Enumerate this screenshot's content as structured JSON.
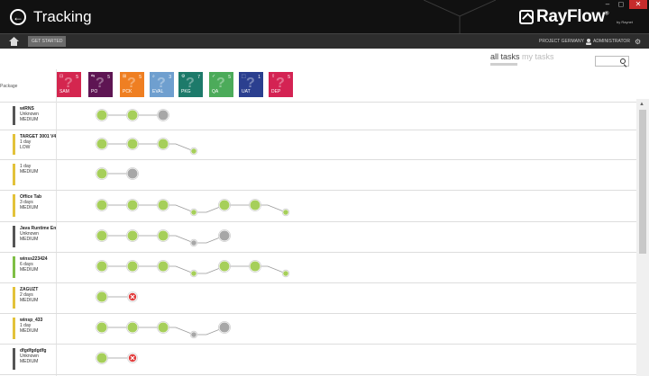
{
  "window": {
    "title": "Tracking",
    "brand": "RayFlow",
    "brand_mark": "®",
    "brand_sub": "by Raynet",
    "minimize": "–",
    "maximize": "◻",
    "close": "✕"
  },
  "nav": {
    "get_started": "GET STARTED",
    "project": "PROJECT GERMANY",
    "user": "ADMINISTRATOR"
  },
  "filter": {
    "all_tasks": "all tasks",
    "my_tasks": "my tasks"
  },
  "header": {
    "package_label": "Package"
  },
  "phases": [
    {
      "label": "SAM",
      "num": "5",
      "color": "#d4264f"
    },
    {
      "label": "PO",
      "num": "5",
      "color": "#5e1553"
    },
    {
      "label": "PCK",
      "num": "5",
      "color": "#ef7f22"
    },
    {
      "label": "EVAL",
      "num": "3",
      "color": "#6f9fcf"
    },
    {
      "label": "PKG",
      "num": "7",
      "color": "#1d7a6a"
    },
    {
      "label": "QA",
      "num": "5",
      "color": "#4cab5a"
    },
    {
      "label": "UAT",
      "num": "1",
      "color": "#2b3f8f"
    },
    {
      "label": "DEP",
      "num": "5",
      "color": "#d42353"
    }
  ],
  "packages": [
    {
      "name": "wiRNS",
      "duration": "Unknown",
      "priority": "MEDIUM",
      "color": "#555555"
    },
    {
      "name": "TARGET 3001 V4",
      "duration": "1 day",
      "priority": "LOW",
      "color": "#e3c23a"
    },
    {
      "name": "",
      "duration": "1 day",
      "priority": "MEDIUM",
      "color": "#e3c23a"
    },
    {
      "name": "Office Tab",
      "duration": "3 days",
      "priority": "MEDIUM",
      "color": "#e3c23a"
    },
    {
      "name": "Java Runtime Env",
      "duration": "Unknown",
      "priority": "MEDIUM",
      "color": "#555555"
    },
    {
      "name": "winss223424",
      "duration": "6 days",
      "priority": "MEDIUM",
      "color": "#7fbe45"
    },
    {
      "name": "ZAGUZT",
      "duration": "2 days",
      "priority": "MEDIUM",
      "color": "#e3c23a"
    },
    {
      "name": "winsp_433",
      "duration": "1 day",
      "priority": "MEDIUM",
      "color": "#e3c23a"
    },
    {
      "name": "dfgdfgdgdfg",
      "duration": "Unknown",
      "priority": "MEDIUM",
      "color": "#555555"
    }
  ],
  "icons": {
    "back": "back-arrow-icon",
    "logo": "rayflow-logo-icon",
    "home": "home-icon",
    "user": "user-icon",
    "settings": "gear-icon",
    "search": "search-icon",
    "node_done": "green-circle-icon",
    "node_pending": "gray-circle-icon",
    "node_failed": "red-x-icon"
  },
  "colors": {
    "done": "#a6cf5a",
    "pending": "#a7a7a7",
    "failed": "#e13b3b"
  }
}
